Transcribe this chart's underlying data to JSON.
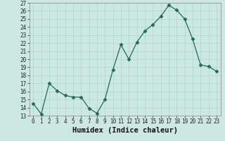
{
  "x": [
    0,
    1,
    2,
    3,
    4,
    5,
    6,
    7,
    8,
    9,
    10,
    11,
    12,
    13,
    14,
    15,
    16,
    17,
    18,
    19,
    20,
    21,
    22,
    23
  ],
  "y": [
    14.5,
    13.2,
    17.0,
    16.1,
    15.5,
    15.3,
    15.3,
    13.9,
    13.3,
    15.0,
    18.7,
    21.8,
    20.0,
    22.1,
    23.5,
    24.3,
    25.3,
    26.7,
    26.1,
    25.0,
    22.5,
    19.3,
    19.1,
    18.5
  ],
  "line_color": "#1f6b5a",
  "marker": "D",
  "marker_size": 2.5,
  "bg_color": "#cce8e2",
  "grid_color": "#b0d4ce",
  "xlabel": "Humidex (Indice chaleur)",
  "ylim": [
    13,
    27
  ],
  "xlim_min": -0.5,
  "xlim_max": 23.5,
  "yticks": [
    13,
    14,
    15,
    16,
    17,
    18,
    19,
    20,
    21,
    22,
    23,
    24,
    25,
    26,
    27
  ],
  "xticks": [
    0,
    1,
    2,
    3,
    4,
    5,
    6,
    7,
    8,
    9,
    10,
    11,
    12,
    13,
    14,
    15,
    16,
    17,
    18,
    19,
    20,
    21,
    22,
    23
  ],
  "tick_fontsize": 5.5,
  "label_fontsize": 7.5
}
